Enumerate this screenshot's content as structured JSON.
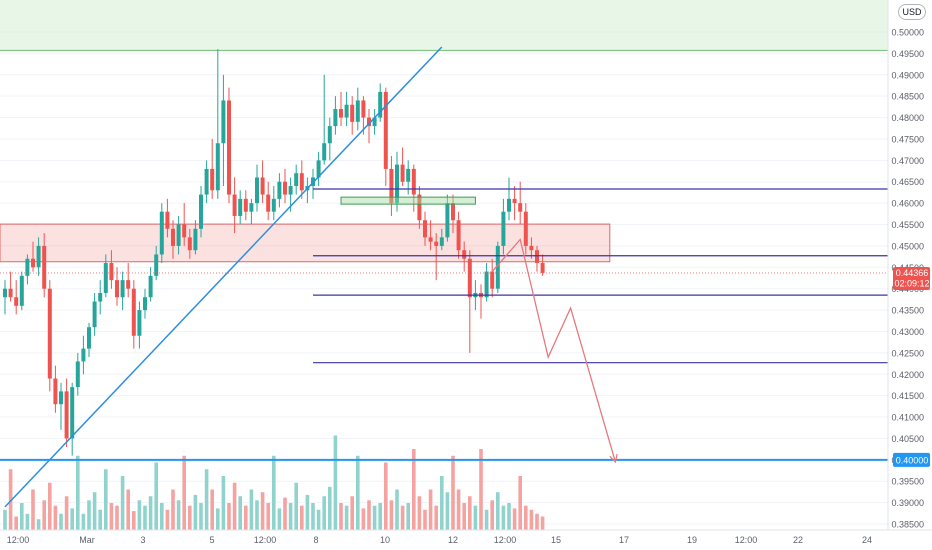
{
  "currency": "USD",
  "colors": {
    "up": "#26a69a",
    "down": "#ef5350",
    "vol_up": "#8fd3cc",
    "vol_down": "#f4a3a1",
    "trendline": "#2c8ee0",
    "horizontal": "#3d32a8",
    "support": "#2196f3",
    "projection": "#e5797c",
    "supply_zone": "rgba(240,120,120,0.22)",
    "target_zone": "rgba(180,225,180,0.3)",
    "grid": "#f0f3fa",
    "axis_text": "#5d606b"
  },
  "chart_data": {
    "type": "candlestick",
    "y_ticks": [
      "0.50000",
      "0.49500",
      "0.49000",
      "0.48500",
      "0.48000",
      "0.47500",
      "0.47000",
      "0.46500",
      "0.46000",
      "0.45500",
      "0.45000",
      "0.44500",
      "0.44000",
      "0.43500",
      "0.43000",
      "0.42500",
      "0.42000",
      "0.41500",
      "0.41000",
      "0.40500",
      "0.40000",
      "0.39500",
      "0.39000",
      "0.38500"
    ],
    "ylim": [
      0.3835,
      0.5025
    ],
    "x_ticks": [
      "12:00",
      "Mar",
      "3",
      "5",
      "12:00",
      "8",
      "10",
      "12",
      "12:00",
      "15",
      "17",
      "19",
      "12:00",
      "22",
      "24"
    ],
    "current_price": "0.44366",
    "countdown": "02:09:12",
    "support_label": "0.40000",
    "candles": [
      [
        0.438,
        0.442,
        0.434,
        0.44
      ],
      [
        0.44,
        0.444,
        0.437,
        0.438
      ],
      [
        0.438,
        0.442,
        0.434,
        0.436
      ],
      [
        0.436,
        0.444,
        0.435,
        0.443
      ],
      [
        0.443,
        0.448,
        0.441,
        0.447
      ],
      [
        0.447,
        0.451,
        0.444,
        0.445
      ],
      [
        0.445,
        0.452,
        0.443,
        0.45
      ],
      [
        0.45,
        0.453,
        0.438,
        0.44
      ],
      [
        0.44,
        0.442,
        0.416,
        0.419
      ],
      [
        0.419,
        0.422,
        0.411,
        0.413
      ],
      [
        0.413,
        0.418,
        0.407,
        0.416
      ],
      [
        0.416,
        0.419,
        0.403,
        0.405
      ],
      [
        0.405,
        0.418,
        0.401,
        0.417
      ],
      [
        0.417,
        0.425,
        0.415,
        0.423
      ],
      [
        0.423,
        0.429,
        0.42,
        0.426
      ],
      [
        0.426,
        0.432,
        0.424,
        0.431
      ],
      [
        0.431,
        0.439,
        0.429,
        0.437
      ],
      [
        0.437,
        0.442,
        0.434,
        0.439
      ],
      [
        0.439,
        0.448,
        0.438,
        0.446
      ],
      [
        0.446,
        0.449,
        0.44,
        0.442
      ],
      [
        0.442,
        0.445,
        0.436,
        0.438
      ],
      [
        0.438,
        0.444,
        0.435,
        0.442
      ],
      [
        0.442,
        0.446,
        0.438,
        0.44
      ],
      [
        0.44,
        0.442,
        0.426,
        0.429
      ],
      [
        0.429,
        0.437,
        0.426,
        0.435
      ],
      [
        0.435,
        0.44,
        0.433,
        0.438
      ],
      [
        0.438,
        0.445,
        0.437,
        0.443
      ],
      [
        0.443,
        0.45,
        0.442,
        0.448
      ],
      [
        0.448,
        0.46,
        0.446,
        0.458
      ],
      [
        0.458,
        0.461,
        0.452,
        0.454
      ],
      [
        0.454,
        0.456,
        0.447,
        0.45
      ],
      [
        0.45,
        0.457,
        0.448,
        0.455
      ],
      [
        0.455,
        0.46,
        0.45,
        0.452
      ],
      [
        0.452,
        0.454,
        0.447,
        0.449
      ],
      [
        0.449,
        0.456,
        0.448,
        0.454
      ],
      [
        0.454,
        0.464,
        0.452,
        0.462
      ],
      [
        0.462,
        0.47,
        0.46,
        0.468
      ],
      [
        0.468,
        0.475,
        0.461,
        0.463
      ],
      [
        0.463,
        0.496,
        0.461,
        0.474
      ],
      [
        0.474,
        0.49,
        0.464,
        0.484
      ],
      [
        0.484,
        0.487,
        0.46,
        0.462
      ],
      [
        0.462,
        0.466,
        0.453,
        0.457
      ],
      [
        0.457,
        0.463,
        0.455,
        0.461
      ],
      [
        0.461,
        0.463,
        0.456,
        0.458
      ],
      [
        0.458,
        0.461,
        0.455,
        0.46
      ],
      [
        0.46,
        0.469,
        0.458,
        0.466
      ],
      [
        0.466,
        0.47,
        0.46,
        0.462
      ],
      [
        0.462,
        0.465,
        0.456,
        0.458
      ],
      [
        0.458,
        0.464,
        0.456,
        0.461
      ],
      [
        0.461,
        0.467,
        0.459,
        0.465
      ],
      [
        0.465,
        0.468,
        0.46,
        0.462
      ],
      [
        0.462,
        0.466,
        0.458,
        0.464
      ],
      [
        0.464,
        0.469,
        0.462,
        0.467
      ],
      [
        0.467,
        0.47,
        0.461,
        0.463
      ],
      [
        0.463,
        0.466,
        0.46,
        0.464
      ],
      [
        0.464,
        0.468,
        0.461,
        0.466
      ],
      [
        0.466,
        0.472,
        0.464,
        0.47
      ],
      [
        0.47,
        0.49,
        0.469,
        0.474
      ],
      [
        0.474,
        0.48,
        0.47,
        0.478
      ],
      [
        0.478,
        0.485,
        0.476,
        0.482
      ],
      [
        0.482,
        0.486,
        0.478,
        0.48
      ],
      [
        0.48,
        0.486,
        0.478,
        0.483
      ],
      [
        0.483,
        0.485,
        0.476,
        0.479
      ],
      [
        0.479,
        0.487,
        0.477,
        0.484
      ],
      [
        0.484,
        0.485,
        0.476,
        0.48
      ],
      [
        0.48,
        0.482,
        0.474,
        0.478
      ],
      [
        0.478,
        0.482,
        0.476,
        0.48
      ],
      [
        0.48,
        0.488,
        0.479,
        0.486
      ],
      [
        0.486,
        0.487,
        0.464,
        0.468
      ],
      [
        0.468,
        0.471,
        0.457,
        0.46
      ],
      [
        0.46,
        0.472,
        0.458,
        0.469
      ],
      [
        0.469,
        0.473,
        0.464,
        0.465
      ],
      [
        0.465,
        0.47,
        0.462,
        0.468
      ],
      [
        0.468,
        0.469,
        0.458,
        0.462
      ],
      [
        0.462,
        0.464,
        0.454,
        0.456
      ],
      [
        0.456,
        0.458,
        0.45,
        0.452
      ],
      [
        0.452,
        0.456,
        0.449,
        0.451
      ],
      [
        0.451,
        0.453,
        0.442,
        0.45
      ],
      [
        0.45,
        0.454,
        0.449,
        0.452
      ],
      [
        0.452,
        0.462,
        0.451,
        0.46
      ],
      [
        0.46,
        0.462,
        0.453,
        0.456
      ],
      [
        0.456,
        0.458,
        0.447,
        0.449
      ],
      [
        0.449,
        0.451,
        0.444,
        0.447
      ],
      [
        0.447,
        0.449,
        0.425,
        0.438
      ],
      [
        0.438,
        0.442,
        0.435,
        0.439
      ],
      [
        0.439,
        0.441,
        0.433,
        0.438
      ],
      [
        0.438,
        0.446,
        0.437,
        0.444
      ],
      [
        0.444,
        0.447,
        0.438,
        0.44
      ],
      [
        0.44,
        0.451,
        0.439,
        0.45
      ],
      [
        0.45,
        0.461,
        0.448,
        0.458
      ],
      [
        0.458,
        0.466,
        0.456,
        0.461
      ],
      [
        0.461,
        0.464,
        0.456,
        0.46
      ],
      [
        0.46,
        0.465,
        0.455,
        0.458
      ],
      [
        0.458,
        0.46,
        0.448,
        0.45
      ],
      [
        0.45,
        0.452,
        0.447,
        0.449
      ],
      [
        0.449,
        0.45,
        0.444,
        0.446
      ],
      [
        0.446,
        0.448,
        0.443,
        0.4437
      ]
    ],
    "volume_levels": [
      0.15,
      0.45,
      0.1,
      0.2,
      0.12,
      0.3,
      0.08,
      0.22,
      0.35,
      0.18,
      0.12,
      0.25,
      0.16,
      0.55,
      0.12,
      0.22,
      0.28,
      0.15,
      0.45,
      0.2,
      0.18,
      0.4,
      0.3,
      0.14,
      0.22,
      0.18,
      0.25,
      0.5,
      0.2,
      0.15,
      0.3,
      0.22,
      0.55,
      0.18,
      0.26,
      0.2,
      0.45,
      0.3,
      0.16,
      0.4,
      0.2,
      0.35,
      0.25,
      0.18,
      0.3,
      0.22,
      0.28,
      0.2,
      0.55,
      0.16,
      0.24,
      0.2,
      0.35,
      0.18,
      0.26,
      0.2,
      0.15,
      0.25,
      0.32,
      0.7,
      0.2,
      0.18,
      0.25,
      0.55,
      0.16,
      0.22,
      0.18,
      0.2,
      0.5,
      0.22,
      0.3,
      0.18,
      0.2,
      0.6,
      0.25,
      0.15,
      0.3,
      0.18,
      0.4,
      0.28,
      0.55,
      0.3,
      0.2,
      0.25,
      0.18,
      0.6,
      0.15,
      0.22,
      0.28,
      0.18,
      0.2,
      0.16,
      0.4,
      0.18,
      0.15,
      0.12,
      0.1
    ],
    "trendline_price": [
      [
        0,
        0.389
      ],
      [
        78,
        0.4965
      ]
    ],
    "horizontal_levels": [
      {
        "price": 0.4633,
        "from_index": 55
      },
      {
        "price": 0.4477,
        "from_index": 55
      },
      {
        "price": 0.4385,
        "from_index": 55
      },
      {
        "price": 0.4227,
        "from_index": 55
      }
    ],
    "support_level": 0.4,
    "target_zone": {
      "top": 0.5025,
      "bottom": 0.4957
    },
    "supply_zone": {
      "top": 0.4551,
      "bottom": 0.4463,
      "to_index": 108
    },
    "small_box": {
      "from_index": 60,
      "to_index": 84,
      "top": 0.4607,
      "bottom": 0.459
    },
    "projection": [
      [
        87,
        0.444
      ],
      [
        92,
        0.4515
      ],
      [
        97,
        0.424
      ],
      [
        101,
        0.4355
      ],
      [
        109,
        0.3995
      ]
    ]
  }
}
